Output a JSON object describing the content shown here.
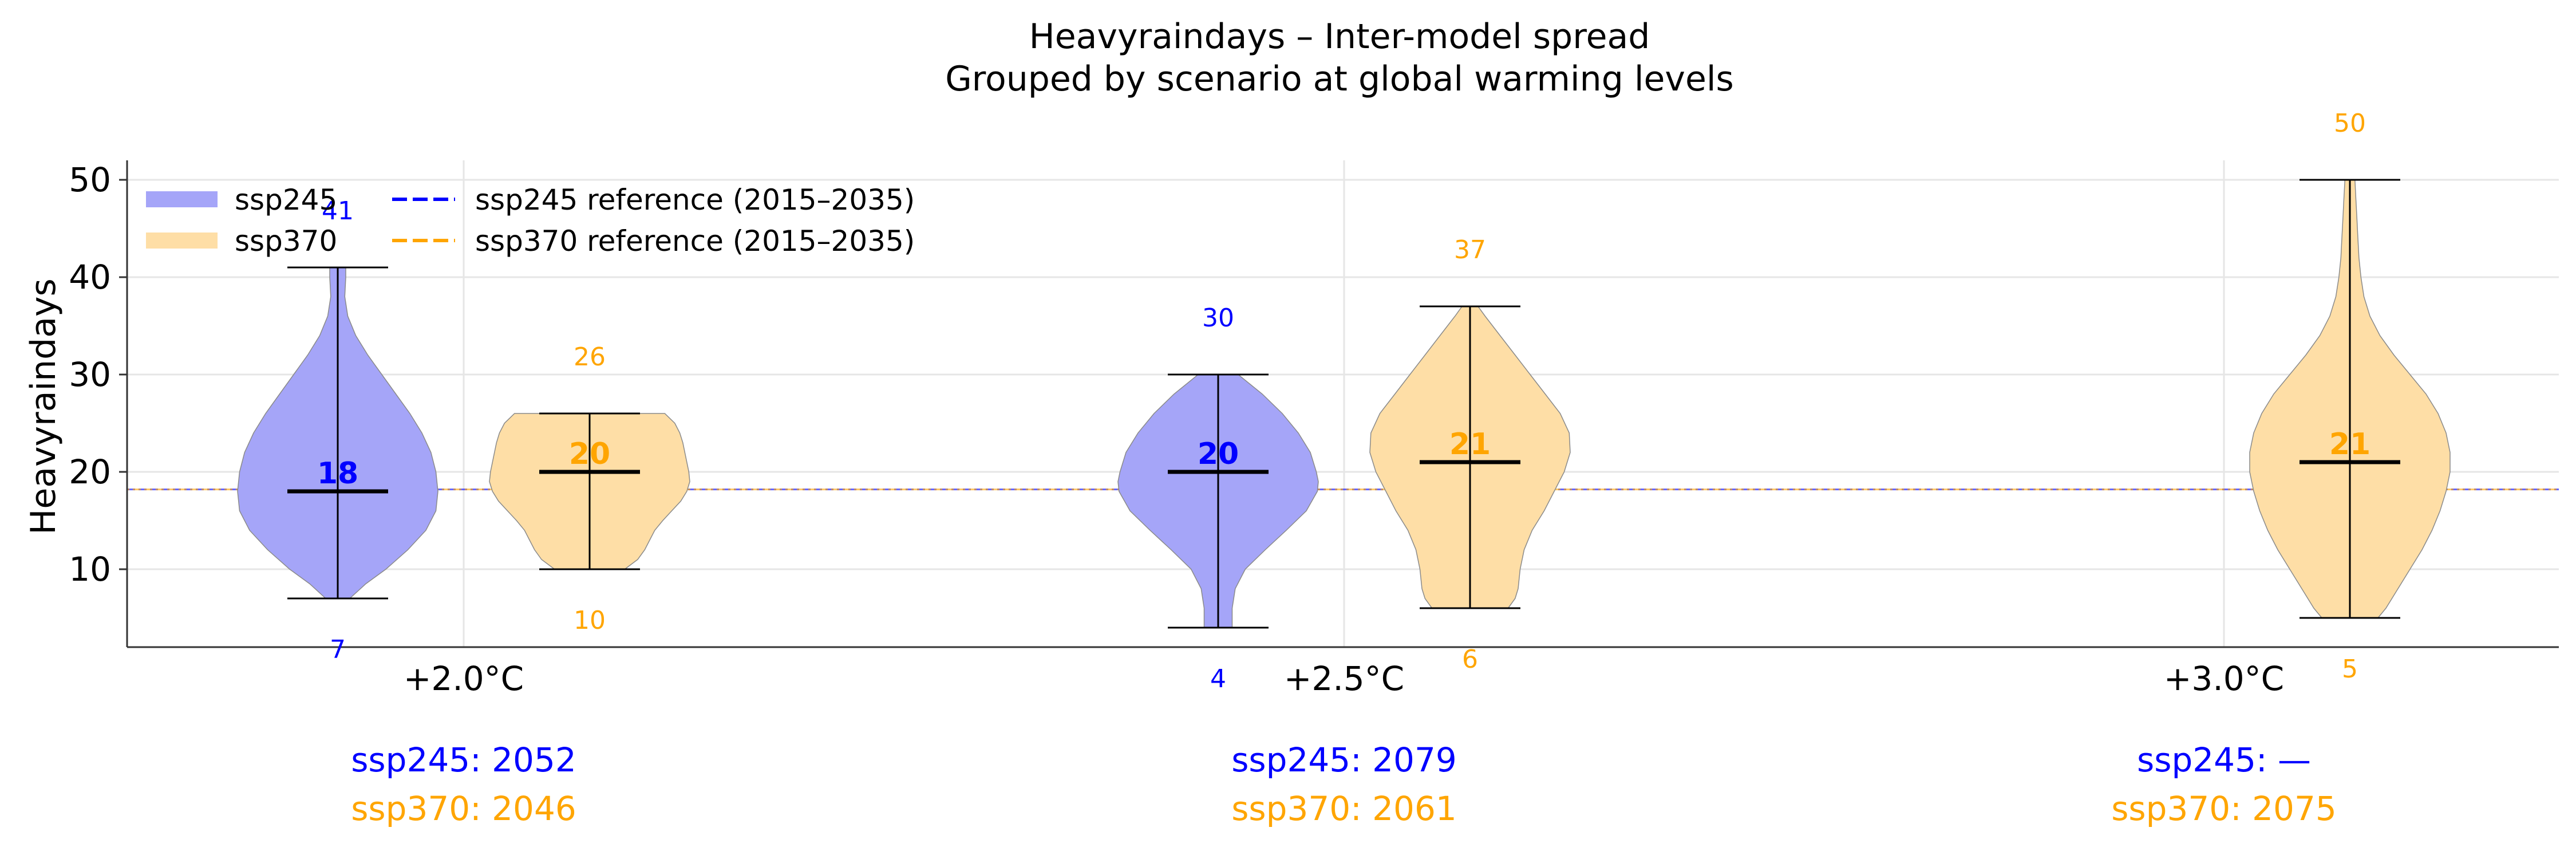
{
  "chart_data": {
    "type": "violin",
    "title": "Heavyraindays – Inter-model spread",
    "subtitle": "Grouped by scenario at global warming levels",
    "ylabel": "Heavyraindays",
    "xlabel": "",
    "ylim": [
      2,
      52
    ],
    "yticks": [
      10,
      20,
      30,
      40,
      50
    ],
    "grid": true,
    "legend_position": "top-left",
    "reference_value": 18.2,
    "colors": {
      "ssp245": "#0000ff",
      "ssp370": "#ffa500",
      "ssp245_fill": "#a5a5f8",
      "ssp370_fill": "#fedea6"
    },
    "legend": [
      {
        "key": "ssp245",
        "label": "ssp245",
        "kind": "patch"
      },
      {
        "key": "ssp370",
        "label": "ssp370",
        "kind": "patch"
      },
      {
        "key": "ssp245",
        "label": "ssp245 reference (2015–2035)",
        "kind": "dashed"
      },
      {
        "key": "ssp370",
        "label": "ssp370 reference (2015–2035)",
        "kind": "dashed"
      }
    ],
    "categories": [
      "+2.0°C",
      "+2.5°C",
      "+3.0°C"
    ],
    "series": [
      {
        "name": "ssp245",
        "violins": [
          {
            "category": "+2.0°C",
            "min": 7,
            "max": 41,
            "median": 18,
            "min_label": "7",
            "max_label": "41",
            "median_label": "18",
            "profile": [
              [
                7,
                0.12
              ],
              [
                8.5,
                0.28
              ],
              [
                10,
                0.48
              ],
              [
                12,
                0.7
              ],
              [
                14,
                0.88
              ],
              [
                16,
                0.98
              ],
              [
                18,
                1.0
              ],
              [
                20,
                0.98
              ],
              [
                22,
                0.93
              ],
              [
                24,
                0.84
              ],
              [
                26,
                0.72
              ],
              [
                28,
                0.58
              ],
              [
                30,
                0.44
              ],
              [
                32,
                0.3
              ],
              [
                34,
                0.18
              ],
              [
                36,
                0.1
              ],
              [
                38,
                0.07
              ],
              [
                40,
                0.08
              ],
              [
                41,
                0.08
              ]
            ]
          },
          {
            "category": "+2.5°C",
            "min": 4,
            "max": 30,
            "median": 20,
            "min_label": "4",
            "max_label": "30",
            "median_label": "20",
            "profile": [
              [
                4,
                0.14
              ],
              [
                6,
                0.14
              ],
              [
                8,
                0.17
              ],
              [
                10,
                0.27
              ],
              [
                12,
                0.47
              ],
              [
                14,
                0.68
              ],
              [
                16,
                0.88
              ],
              [
                18,
                0.99
              ],
              [
                19,
                1.0
              ],
              [
                20,
                0.98
              ],
              [
                22,
                0.92
              ],
              [
                24,
                0.8
              ],
              [
                26,
                0.64
              ],
              [
                28,
                0.44
              ],
              [
                30,
                0.2
              ]
            ]
          }
        ],
        "years": [
          "2052",
          "2079",
          "—"
        ]
      },
      {
        "name": "ssp370",
        "violins": [
          {
            "category": "+2.0°C",
            "min": 10,
            "max": 26,
            "median": 20,
            "min_label": "10",
            "max_label": "26",
            "median_label": "20",
            "profile": [
              [
                10,
                0.35
              ],
              [
                11,
                0.48
              ],
              [
                12,
                0.55
              ],
              [
                13,
                0.6
              ],
              [
                14,
                0.65
              ],
              [
                15,
                0.73
              ],
              [
                16,
                0.82
              ],
              [
                17,
                0.91
              ],
              [
                18,
                0.97
              ],
              [
                19,
                1.0
              ],
              [
                20,
                0.99
              ],
              [
                21,
                0.97
              ],
              [
                22,
                0.95
              ],
              [
                23,
                0.93
              ],
              [
                24,
                0.9
              ],
              [
                25,
                0.85
              ],
              [
                26,
                0.75
              ]
            ]
          },
          {
            "category": "+2.5°C",
            "min": 6,
            "max": 37,
            "median": 21,
            "min_label": "6",
            "max_label": "37",
            "median_label": "21",
            "profile": [
              [
                6,
                0.38
              ],
              [
                7,
                0.45
              ],
              [
                8,
                0.48
              ],
              [
                10,
                0.5
              ],
              [
                12,
                0.54
              ],
              [
                14,
                0.62
              ],
              [
                16,
                0.74
              ],
              [
                18,
                0.84
              ],
              [
                20,
                0.94
              ],
              [
                22,
                1.0
              ],
              [
                24,
                0.99
              ],
              [
                26,
                0.9
              ],
              [
                28,
                0.75
              ],
              [
                30,
                0.6
              ],
              [
                32,
                0.45
              ],
              [
                34,
                0.3
              ],
              [
                36,
                0.15
              ],
              [
                37,
                0.08
              ]
            ]
          },
          {
            "category": "+3.0°C",
            "min": 5,
            "max": 50,
            "median": 21,
            "min_label": "5",
            "max_label": "50",
            "median_label": "21",
            "profile": [
              [
                5,
                0.28
              ],
              [
                6,
                0.36
              ],
              [
                8,
                0.48
              ],
              [
                10,
                0.6
              ],
              [
                12,
                0.72
              ],
              [
                14,
                0.82
              ],
              [
                16,
                0.9
              ],
              [
                18,
                0.96
              ],
              [
                20,
                1.0
              ],
              [
                22,
                1.0
              ],
              [
                24,
                0.96
              ],
              [
                26,
                0.88
              ],
              [
                28,
                0.76
              ],
              [
                30,
                0.6
              ],
              [
                32,
                0.44
              ],
              [
                34,
                0.3
              ],
              [
                36,
                0.2
              ],
              [
                38,
                0.14
              ],
              [
                40,
                0.11
              ],
              [
                42,
                0.09
              ],
              [
                44,
                0.08
              ],
              [
                46,
                0.07
              ],
              [
                48,
                0.06
              ],
              [
                50,
                0.05
              ]
            ]
          }
        ],
        "years": [
          "2046",
          "2061",
          "2075"
        ]
      }
    ],
    "year_labels": {
      "ssp245": [
        "ssp245: 2052",
        "ssp245: 2079",
        "ssp245: —"
      ],
      "ssp370": [
        "ssp370: 2046",
        "ssp370: 2061",
        "ssp370: 2075"
      ]
    }
  }
}
